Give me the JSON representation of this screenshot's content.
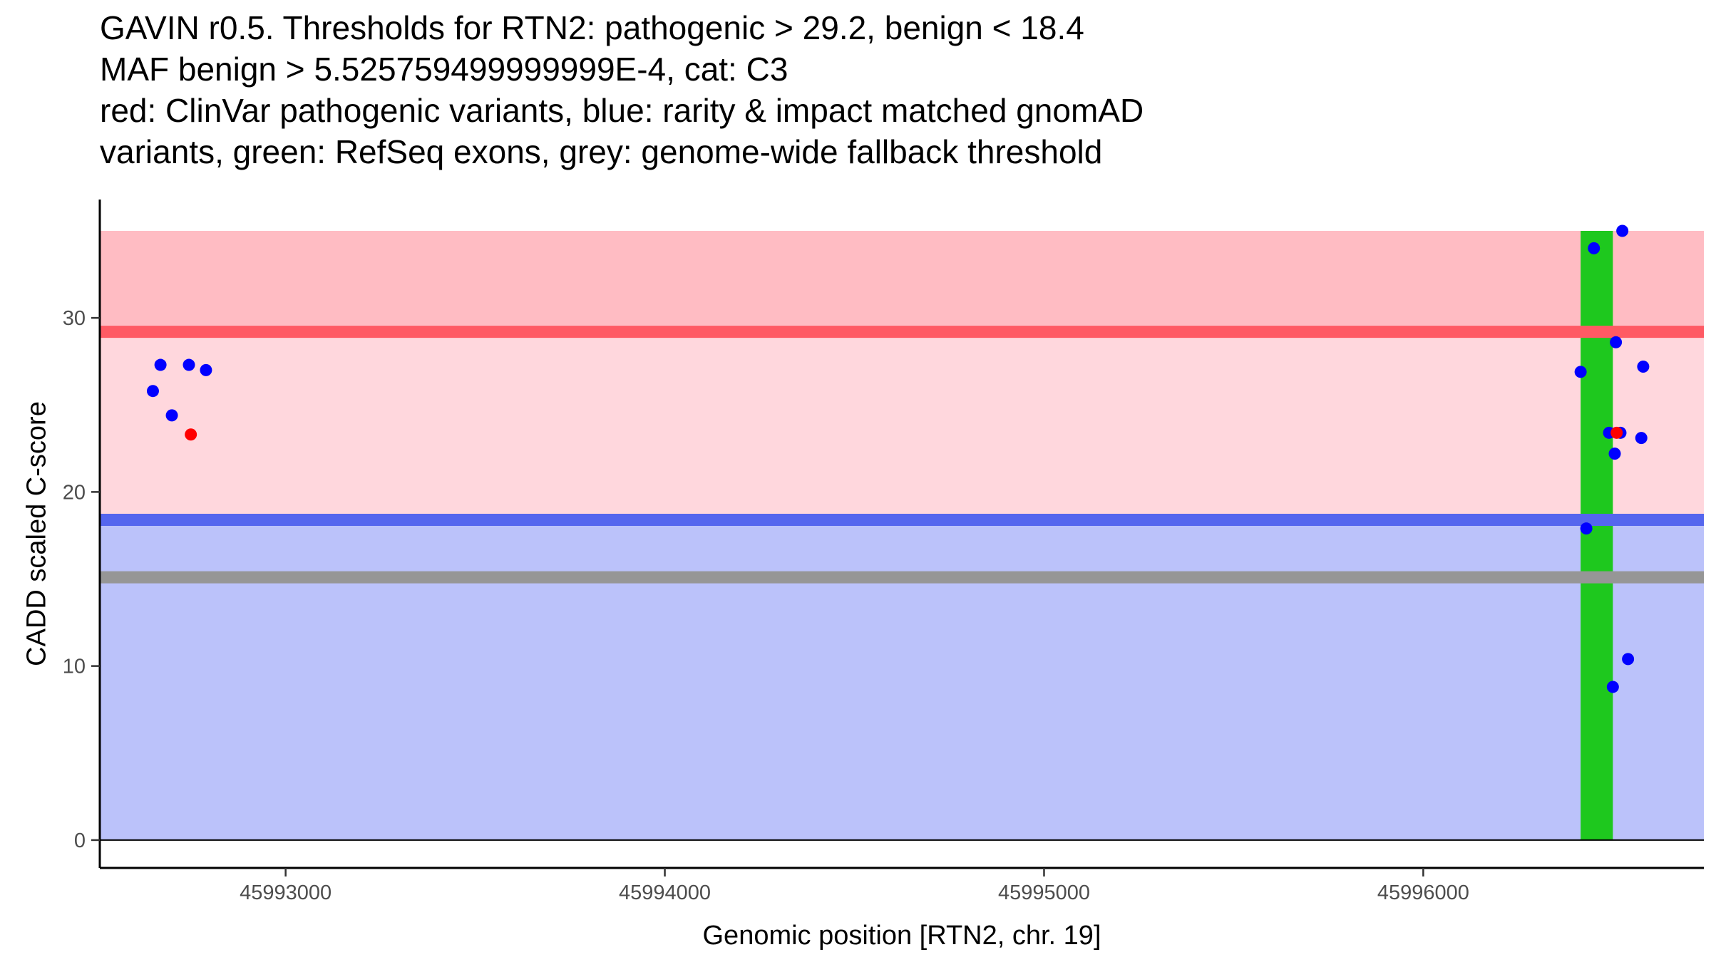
{
  "chart_data": {
    "type": "scatter",
    "title_lines": [
      "GAVIN r0.5. Thresholds for RTN2: pathogenic > 29.2, benign < 18.4",
      "MAF benign > 5.525759499999999E-4, cat: C3",
      "red: ClinVar pathogenic variants, blue: rarity & impact matched gnomAD",
      "variants, green: RefSeq exons, grey: genome-wide fallback threshold"
    ],
    "xlabel": "Genomic position [RTN2, chr. 19]",
    "ylabel": "CADD scaled C-score",
    "xlim": [
      45992510,
      45996740
    ],
    "ylim": [
      -1.6,
      36.8
    ],
    "x_ticks": [
      45993000,
      45994000,
      45995000,
      45996000
    ],
    "x_tick_labels": [
      "45993000",
      "45994000",
      "45995000",
      "45996000"
    ],
    "y_ticks": [
      0,
      10,
      20,
      30
    ],
    "y_tick_labels": [
      "0",
      "10",
      "20",
      "30"
    ],
    "bands": [
      {
        "name": "pathogenic-region",
        "y0": 29.2,
        "y1": 35,
        "color": "#ffbcc3"
      },
      {
        "name": "intermediate-region",
        "y0": 18.4,
        "y1": 29.2,
        "color": "#ffd7dd"
      },
      {
        "name": "benign-region",
        "y0": 0,
        "y1": 18.4,
        "color": "#bbc2fa"
      }
    ],
    "thresholds": [
      {
        "name": "pathogenic-threshold",
        "y": 29.2,
        "color": "#ff5a64"
      },
      {
        "name": "benign-threshold",
        "y": 18.4,
        "color": "#5566ee"
      },
      {
        "name": "fallback-threshold",
        "y": 15.1,
        "color": "#969696"
      }
    ],
    "exons": [
      {
        "name": "refseq-exon",
        "x0": 45996415,
        "x1": 45996500,
        "y0": 0,
        "y1": 35,
        "color": "#1ec81e"
      }
    ],
    "series": [
      {
        "name": "gnomAD matched variants",
        "color": "#0000ff",
        "points": [
          [
            45992650,
            25.8
          ],
          [
            45992670,
            27.3
          ],
          [
            45992700,
            24.4
          ],
          [
            45992745,
            27.3
          ],
          [
            45992790,
            27.0
          ],
          [
            45996415,
            26.9
          ],
          [
            45996430,
            17.9
          ],
          [
            45996450,
            34.0
          ],
          [
            45996490,
            23.4
          ],
          [
            45996500,
            8.8
          ],
          [
            45996505,
            22.2
          ],
          [
            45996508,
            28.6
          ],
          [
            45996520,
            23.4
          ],
          [
            45996525,
            35.0
          ],
          [
            45996540,
            10.4
          ],
          [
            45996575,
            23.1
          ],
          [
            45996580,
            27.2
          ]
        ]
      },
      {
        "name": "ClinVar pathogenic variants",
        "color": "#ff0000",
        "points": [
          [
            45992750,
            23.3
          ],
          [
            45996510,
            23.4
          ]
        ]
      }
    ]
  }
}
